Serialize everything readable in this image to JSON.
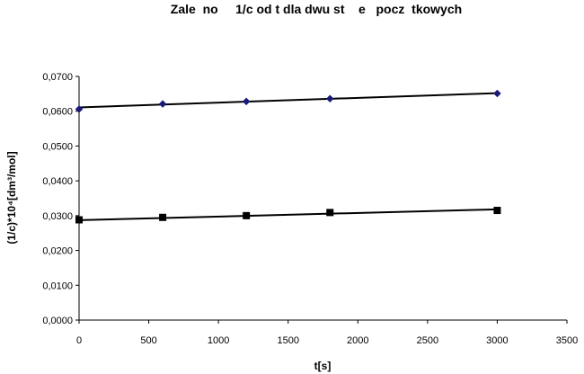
{
  "chart_data": {
    "type": "scatter",
    "title": "Zale  no     1/c od t dla dwu st    e   pocz  tkowych",
    "xlabel": "t[s]",
    "ylabel": "(1/c)*10⁴[dm³/mol]",
    "xlim": [
      0,
      3500
    ],
    "ylim": [
      0,
      0.07
    ],
    "x_ticks": [
      "0",
      "500",
      "1000",
      "1500",
      "2000",
      "2500",
      "3000",
      "3500"
    ],
    "y_ticks": [
      "0,0000",
      "0,0100",
      "0,0200",
      "0,0300",
      "0,0400",
      "0,0500",
      "0,0600",
      "0,0700"
    ],
    "grid": false,
    "legend": "none",
    "series": [
      {
        "marker": "diamond",
        "color": "#1a1a7a",
        "x": [
          0,
          600,
          1200,
          1800,
          3000
        ],
        "y": [
          0.0606,
          0.0621,
          0.0628,
          0.0636,
          0.0651
        ],
        "trendline": [
          [
            0,
            0.0611
          ],
          [
            3000,
            0.0652
          ]
        ]
      },
      {
        "marker": "square",
        "color": "#000000",
        "x": [
          0,
          600,
          1200,
          1800,
          3000
        ],
        "y": [
          0.0288,
          0.0295,
          0.03,
          0.0309,
          0.0315
        ],
        "trendline": [
          [
            0,
            0.0287
          ],
          [
            3000,
            0.0318
          ]
        ]
      }
    ]
  }
}
